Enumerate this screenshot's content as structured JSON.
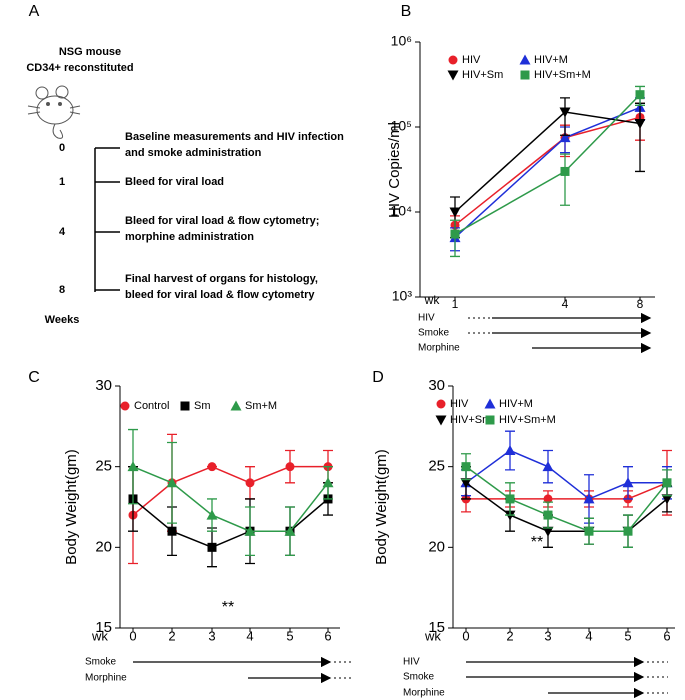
{
  "panel_a": {
    "label": "A",
    "title": [
      "NSG mouse",
      "CD34+ reconstituted"
    ],
    "timeline": [
      {
        "week": "0",
        "lines": [
          "Baseline measurements and HIV infection",
          "and smoke administration"
        ]
      },
      {
        "week": "1",
        "lines": [
          "Bleed for viral load"
        ]
      },
      {
        "week": "4",
        "lines": [
          "Bleed for viral load & flow cytometry;",
          "morphine administration"
        ]
      },
      {
        "week": "8",
        "lines": [
          "Final harvest of organs for histology,",
          "bleed for viral load & flow cytometry"
        ]
      }
    ],
    "axis_label": "Weeks"
  },
  "chart_data": [
    {
      "type": "line",
      "label": "B",
      "ylabel": "HIV Copies/ml",
      "x_label": "wk",
      "log_y": true,
      "categories": [
        "1",
        "4",
        "8"
      ],
      "ylim": [
        1000,
        1000000
      ],
      "yticks": [
        {
          "value": 1000,
          "label": "10³"
        },
        {
          "value": 10000,
          "label": "10⁴"
        },
        {
          "value": 100000,
          "label": "10⁵"
        },
        {
          "value": 1000000,
          "label": "10⁶"
        }
      ],
      "series": [
        {
          "name": "HIV",
          "color": "#e8202a",
          "marker": "circle",
          "values": [
            7000,
            75000,
            130000
          ],
          "errors": [
            2000,
            30000,
            60000
          ]
        },
        {
          "name": "HIV+M",
          "color": "#1f2fd8",
          "marker": "triangle",
          "values": [
            5000,
            75000,
            170000
          ],
          "errors": [
            1500,
            25000,
            50000
          ]
        },
        {
          "name": "HIV+Sm",
          "color": "#000000",
          "marker": "triangle-down",
          "values": [
            10000,
            150000,
            110000
          ],
          "errors": [
            5000,
            70000,
            80000
          ]
        },
        {
          "name": "HIV+Sm+M",
          "color": "#2e9a4a",
          "marker": "square",
          "values": [
            5500,
            30000,
            240000
          ],
          "errors": [
            2500,
            18000,
            60000
          ]
        }
      ],
      "treatments": [
        "HIV",
        "Smoke",
        "Morphine"
      ]
    },
    {
      "type": "line",
      "label": "C",
      "ylabel": "Body Weight(gm)",
      "x_label": "wk",
      "log_y": false,
      "categories": [
        "0",
        "2",
        "3",
        "4",
        "5",
        "6"
      ],
      "ylim": [
        15,
        30
      ],
      "yticks": [
        15,
        20,
        25,
        30
      ],
      "series": [
        {
          "name": "Control",
          "color": "#e8202a",
          "marker": "circle",
          "values": [
            22,
            24,
            25,
            24,
            25,
            25
          ],
          "errors": [
            3,
            3,
            0,
            1,
            1,
            1
          ]
        },
        {
          "name": "Sm",
          "color": "#000000",
          "marker": "square",
          "values": [
            23,
            21,
            20,
            21,
            21,
            23
          ],
          "errors": [
            2,
            1.5,
            1.2,
            2,
            1.5,
            1
          ]
        },
        {
          "name": "Sm+M",
          "color": "#2e9a4a",
          "marker": "triangle",
          "values": [
            25,
            24,
            22,
            21,
            21,
            24
          ],
          "errors": [
            2.3,
            2.5,
            1,
            1.5,
            1.5,
            1
          ]
        }
      ],
      "annotations": [
        "**"
      ],
      "treatments": [
        "Smoke",
        "Morphine"
      ]
    },
    {
      "type": "line",
      "label": "D",
      "ylabel": "Body Weight(gm)",
      "x_label": "wk",
      "log_y": false,
      "categories": [
        "0",
        "2",
        "3",
        "4",
        "5",
        "6"
      ],
      "ylim": [
        15,
        30
      ],
      "yticks": [
        15,
        20,
        25,
        30
      ],
      "series": [
        {
          "name": "HIV",
          "color": "#e8202a",
          "marker": "circle",
          "values": [
            23,
            23,
            23,
            23,
            23,
            24
          ],
          "errors": [
            0.8,
            0.5,
            0.5,
            0.5,
            0.5,
            2
          ]
        },
        {
          "name": "HIV+M",
          "color": "#1f2fd8",
          "marker": "triangle",
          "values": [
            24,
            26,
            25,
            23,
            24,
            24
          ],
          "errors": [
            0.8,
            1.2,
            1,
            1.5,
            1,
            1
          ]
        },
        {
          "name": "HIV+Sm",
          "color": "#000000",
          "marker": "triangle-down",
          "values": [
            24,
            22,
            21,
            21,
            21,
            23
          ],
          "errors": [
            1,
            1,
            1,
            0.8,
            1,
            0.8
          ]
        },
        {
          "name": "HIV+Sm+M",
          "color": "#2e9a4a",
          "marker": "square",
          "values": [
            25,
            23,
            22,
            21,
            21,
            24
          ],
          "errors": [
            0.8,
            1,
            0.8,
            0.8,
            1,
            0.8
          ]
        }
      ],
      "annotations": [
        "**"
      ],
      "treatments": [
        "HIV",
        "Smoke",
        "Morphine"
      ]
    }
  ]
}
